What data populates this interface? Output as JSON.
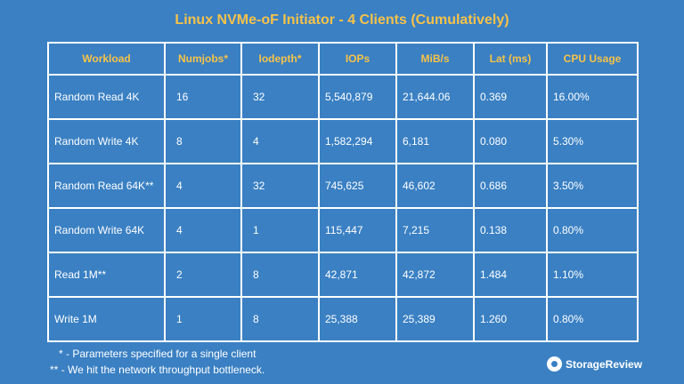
{
  "chart_data": {
    "type": "table",
    "title": "Linux NVMe-oF Initiator - 4 Clients (Cumulatively)",
    "columns": [
      "Workload",
      "Numjobs*",
      "Iodepth*",
      "IOPs",
      "MiB/s",
      "Lat (ms)",
      "CPU Usage"
    ],
    "rows": [
      [
        "Random Read 4K",
        "16",
        "32",
        "5,540,879",
        "21,644.06",
        "0.369",
        "16.00%"
      ],
      [
        "Random Write 4K",
        "8",
        "4",
        "1,582,294",
        "6,181",
        "0.080",
        "5.30%"
      ],
      [
        "Random Read 64K**",
        "4",
        "32",
        "745,625",
        "46,602",
        "0.686",
        "3.50%"
      ],
      [
        "Random Write 64K",
        "4",
        "1",
        "115,447",
        "7,215",
        "0.138",
        "0.80%"
      ],
      [
        "Read 1M**",
        "2",
        "8",
        "42,871",
        "42,872",
        "1.484",
        "1.10%"
      ],
      [
        "Write 1M",
        "1",
        "8",
        "25,388",
        "25,389",
        "1.260",
        "0.80%"
      ]
    ],
    "footnotes": [
      "* - Parameters specified for a single client",
      "** - We hit the network throughput bottleneck."
    ]
  },
  "brand": {
    "logo_text": "StorageReview",
    "logo_icon": "storagereview-logo-icon"
  },
  "colors": {
    "background": "#3a80c3",
    "header_text": "#f6c24a",
    "text": "#ffffff"
  }
}
